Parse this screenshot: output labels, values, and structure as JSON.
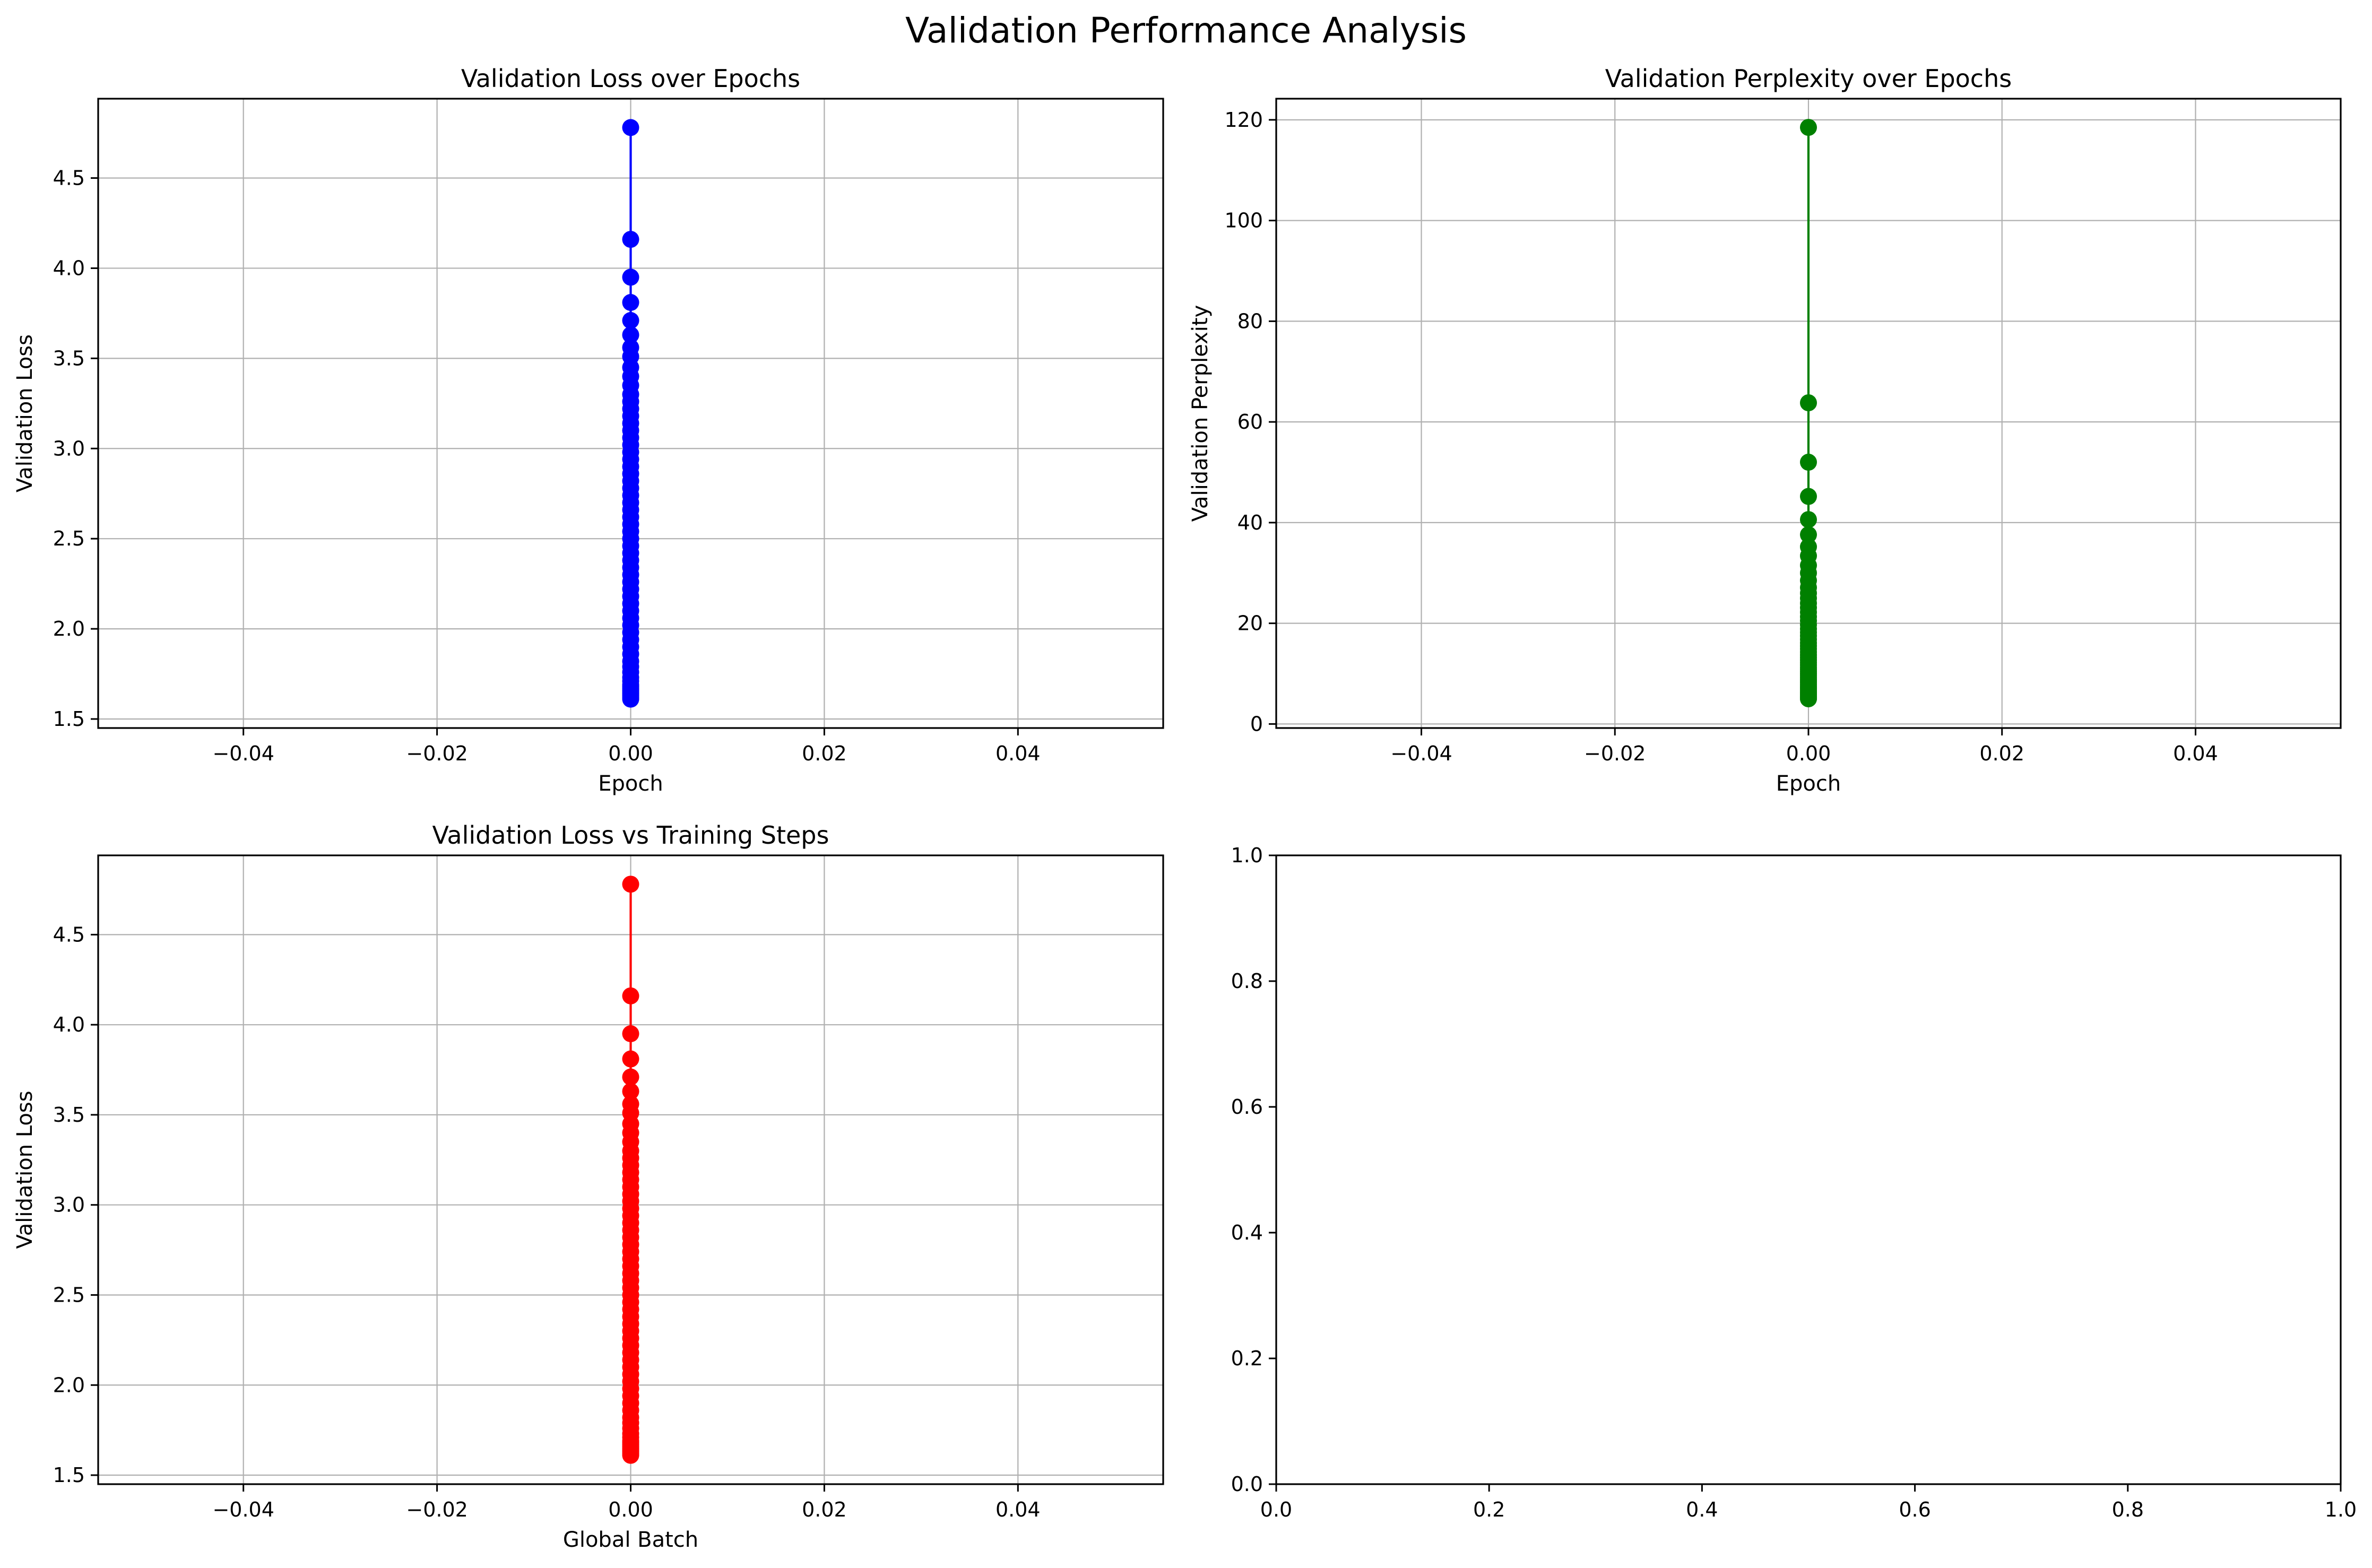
{
  "figure": {
    "suptitle": "Validation Performance Analysis"
  },
  "chart_data": [
    {
      "type": "line",
      "title": "Validation Loss over Epochs",
      "xlabel": "Epoch",
      "ylabel": "Validation Loss",
      "xlim": [
        -0.055,
        0.055
      ],
      "ylim": [
        1.45,
        4.94
      ],
      "xticks": [
        -0.04,
        -0.02,
        0.0,
        0.02,
        0.04
      ],
      "xtick_labels": [
        "−0.04",
        "−0.02",
        "0.00",
        "0.02",
        "0.04"
      ],
      "yticks": [
        1.5,
        2.0,
        2.5,
        3.0,
        3.5,
        4.0,
        4.5
      ],
      "ytick_labels": [
        "1.5",
        "2.0",
        "2.5",
        "3.0",
        "3.5",
        "4.0",
        "4.5"
      ],
      "grid": true,
      "color": "#0000ff",
      "series": [
        {
          "name": "Validation Loss",
          "x": [
            0,
            0,
            0,
            0,
            0,
            0,
            0,
            0,
            0,
            0,
            0,
            0,
            0,
            0,
            0,
            0,
            0,
            0,
            0,
            0,
            0,
            0,
            0,
            0,
            0,
            0,
            0,
            0,
            0,
            0,
            0,
            0,
            0,
            0,
            0,
            0,
            0,
            0,
            0,
            0,
            0,
            0,
            0,
            0,
            0,
            0,
            0,
            0,
            0,
            0,
            0,
            0,
            0,
            0,
            0,
            0,
            0,
            0,
            0,
            0,
            0,
            0
          ],
          "y": [
            4.78,
            4.16,
            3.95,
            3.81,
            3.71,
            3.63,
            3.56,
            3.51,
            3.45,
            3.4,
            3.35,
            3.3,
            3.26,
            3.22,
            3.18,
            3.14,
            3.1,
            3.06,
            3.02,
            2.98,
            2.94,
            2.9,
            2.86,
            2.82,
            2.78,
            2.74,
            2.7,
            2.66,
            2.62,
            2.58,
            2.54,
            2.5,
            2.46,
            2.42,
            2.38,
            2.34,
            2.3,
            2.26,
            2.22,
            2.18,
            2.14,
            2.1,
            2.06,
            2.02,
            1.98,
            1.94,
            1.9,
            1.86,
            1.82,
            1.79,
            1.76,
            1.73,
            1.71,
            1.69,
            1.68,
            1.67,
            1.66,
            1.65,
            1.64,
            1.63,
            1.62,
            1.61
          ]
        }
      ]
    },
    {
      "type": "line",
      "title": "Validation Perplexity over Epochs",
      "xlabel": "Epoch",
      "ylabel": "Validation Perplexity",
      "xlim": [
        -0.055,
        0.055
      ],
      "ylim": [
        -0.8,
        124.2
      ],
      "xticks": [
        -0.04,
        -0.02,
        0.0,
        0.02,
        0.04
      ],
      "xtick_labels": [
        "−0.04",
        "−0.02",
        "0.00",
        "0.02",
        "0.04"
      ],
      "yticks": [
        0,
        20,
        40,
        60,
        80,
        100,
        120
      ],
      "ytick_labels": [
        "0",
        "20",
        "40",
        "60",
        "80",
        "100",
        "120"
      ],
      "grid": true,
      "color": "#008000",
      "series": [
        {
          "name": "Validation Perplexity",
          "x": [
            0,
            0,
            0,
            0,
            0,
            0,
            0,
            0,
            0,
            0,
            0,
            0,
            0,
            0,
            0,
            0,
            0,
            0,
            0,
            0,
            0,
            0,
            0,
            0,
            0,
            0,
            0,
            0,
            0,
            0,
            0,
            0,
            0,
            0,
            0,
            0,
            0,
            0,
            0,
            0,
            0,
            0,
            0,
            0,
            0,
            0,
            0,
            0,
            0,
            0,
            0,
            0,
            0,
            0,
            0,
            0,
            0,
            0,
            0,
            0,
            0,
            0
          ],
          "y": [
            118.5,
            63.8,
            52.0,
            45.2,
            40.6,
            37.6,
            35.2,
            33.4,
            31.5,
            30.0,
            28.5,
            27.1,
            26.0,
            25.0,
            24.0,
            23.1,
            22.2,
            21.3,
            20.5,
            19.7,
            18.9,
            18.2,
            17.5,
            16.8,
            16.1,
            15.5,
            14.9,
            14.3,
            13.7,
            13.2,
            12.7,
            12.2,
            11.7,
            11.2,
            10.8,
            10.4,
            10.0,
            9.6,
            9.2,
            8.8,
            8.5,
            8.2,
            7.8,
            7.5,
            7.2,
            7.0,
            6.7,
            6.4,
            6.2,
            6.0,
            5.8,
            5.6,
            5.5,
            5.4,
            5.4,
            5.3,
            5.3,
            5.2,
            5.2,
            5.1,
            5.1,
            5.0
          ]
        }
      ]
    },
    {
      "type": "line",
      "title": "Validation Loss vs Training Steps",
      "xlabel": "Global Batch",
      "ylabel": "Validation Loss",
      "xlim": [
        -0.055,
        0.055
      ],
      "ylim": [
        1.45,
        4.94
      ],
      "xticks": [
        -0.04,
        -0.02,
        0.0,
        0.02,
        0.04
      ],
      "xtick_labels": [
        "−0.04",
        "−0.02",
        "0.00",
        "0.02",
        "0.04"
      ],
      "yticks": [
        1.5,
        2.0,
        2.5,
        3.0,
        3.5,
        4.0,
        4.5
      ],
      "ytick_labels": [
        "1.5",
        "2.0",
        "2.5",
        "3.0",
        "3.5",
        "4.0",
        "4.5"
      ],
      "grid": true,
      "color": "#ff0000",
      "series": [
        {
          "name": "Validation Loss",
          "x": [
            0,
            0,
            0,
            0,
            0,
            0,
            0,
            0,
            0,
            0,
            0,
            0,
            0,
            0,
            0,
            0,
            0,
            0,
            0,
            0,
            0,
            0,
            0,
            0,
            0,
            0,
            0,
            0,
            0,
            0,
            0,
            0,
            0,
            0,
            0,
            0,
            0,
            0,
            0,
            0,
            0,
            0,
            0,
            0,
            0,
            0,
            0,
            0,
            0,
            0,
            0,
            0,
            0,
            0,
            0,
            0,
            0,
            0,
            0,
            0,
            0,
            0
          ],
          "y": [
            4.78,
            4.16,
            3.95,
            3.81,
            3.71,
            3.63,
            3.56,
            3.51,
            3.45,
            3.4,
            3.35,
            3.3,
            3.26,
            3.22,
            3.18,
            3.14,
            3.1,
            3.06,
            3.02,
            2.98,
            2.94,
            2.9,
            2.86,
            2.82,
            2.78,
            2.74,
            2.7,
            2.66,
            2.62,
            2.58,
            2.54,
            2.5,
            2.46,
            2.42,
            2.38,
            2.34,
            2.3,
            2.26,
            2.22,
            2.18,
            2.14,
            2.1,
            2.06,
            2.02,
            1.98,
            1.94,
            1.9,
            1.86,
            1.82,
            1.79,
            1.76,
            1.73,
            1.71,
            1.69,
            1.68,
            1.67,
            1.66,
            1.65,
            1.64,
            1.63,
            1.62,
            1.61
          ]
        }
      ]
    },
    {
      "type": "line",
      "title": "",
      "xlabel": "",
      "ylabel": "",
      "xlim": [
        0,
        1
      ],
      "ylim": [
        0,
        1
      ],
      "xticks": [
        0,
        0.2,
        0.4,
        0.6,
        0.8,
        1.0
      ],
      "xtick_labels": [
        "0.0",
        "0.2",
        "0.4",
        "0.6",
        "0.8",
        "1.0"
      ],
      "yticks": [
        0,
        0.2,
        0.4,
        0.6,
        0.8,
        1.0
      ],
      "ytick_labels": [
        "0.0",
        "0.2",
        "0.4",
        "0.6",
        "0.8",
        "1.0"
      ],
      "grid": false,
      "color": "#000000",
      "series": []
    }
  ]
}
